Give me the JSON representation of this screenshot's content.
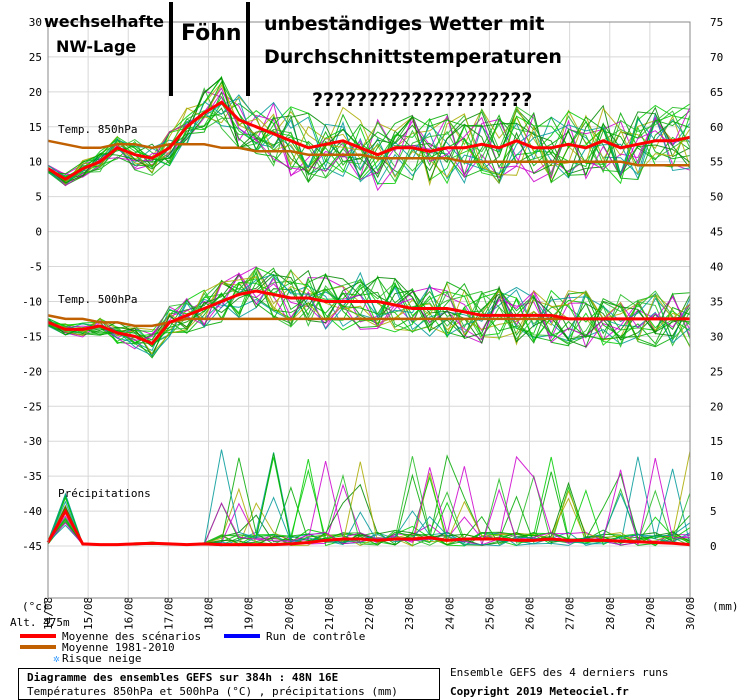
{
  "annotations": {
    "a1_line1": "wechselhafte",
    "a1_line2": "NW-Lage",
    "a2": "Föhn",
    "a3_line1": "unbeständiges Wetter mit",
    "a3_line2": "Durchschnittstemperaturen",
    "a4": "????????????????????"
  },
  "labels": {
    "temp850": "Temp. 850hPa",
    "temp500": "Temp. 500hPa",
    "precip": "Précipitations",
    "unit_left": "(°c)",
    "unit_right": "(mm)",
    "alt": "Alt. 475m"
  },
  "legend": {
    "mean": "Moyenne des scénarios",
    "clim": "Moyenne 1981-2010",
    "snow": "Risque neige",
    "control": "Run de contrôle"
  },
  "footer": {
    "title": "Diagramme des ensembles GEFS sur 384h : 48N 16E",
    "subtitle": "Températures 850hPa et 500hPa (°C) , précipitations (mm)",
    "runs": "Ensemble GEFS des 4 derniers runs",
    "copyright": "Copyright 2019 Meteociel.fr"
  },
  "colors": {
    "mean": "#ff0000",
    "clim": "#c06000",
    "control": "#0000ff",
    "snow": "#3399ff",
    "member_colors": [
      "#00aa00",
      "#00cc00",
      "#cc00cc",
      "#009999",
      "#aaaa00",
      "#22bb22",
      "#008800"
    ]
  },
  "chart_data": {
    "type": "line",
    "x_ticks": [
      "14/08",
      "15/08",
      "16/08",
      "17/08",
      "18/08",
      "19/08",
      "20/08",
      "21/08",
      "22/08",
      "23/08",
      "24/08",
      "25/08",
      "26/08",
      "27/08",
      "28/08",
      "29/08",
      "30/08"
    ],
    "left_axis_ticks": [
      30,
      25,
      20,
      15,
      10,
      5,
      0,
      -5,
      -10,
      -15,
      -20,
      -25,
      -30,
      -35,
      -40,
      -45
    ],
    "right_axis_ticks": [
      75,
      70,
      65,
      60,
      55,
      50,
      45,
      40,
      35,
      30,
      25,
      20,
      15,
      10,
      5,
      0
    ],
    "series": [
      {
        "name": "Moyenne des scénarios",
        "panel": "850hPa",
        "values": [
          9,
          7.5,
          9,
          10,
          12,
          11,
          10.5,
          12,
          15,
          17,
          18.5,
          16,
          15,
          14,
          13,
          12,
          12.5,
          13,
          12,
          11,
          12,
          12,
          11.5,
          12,
          12,
          12.5,
          12,
          13,
          12,
          12,
          12.5,
          12,
          13,
          12,
          12.5,
          13,
          13,
          13.5
        ]
      },
      {
        "name": "Moyenne 1981-2010",
        "panel": "850hPa",
        "values": [
          13,
          12.5,
          12,
          12,
          12.5,
          12.5,
          12,
          12.5,
          12.5,
          12.5,
          12,
          12,
          11.5,
          11.5,
          11.5,
          11,
          11,
          11,
          11,
          10.5,
          10.5,
          10.5,
          10.5,
          10.5,
          10,
          10,
          10,
          10,
          10,
          10,
          10,
          10,
          10,
          10,
          9.5,
          9.5,
          9.5,
          9.5
        ]
      },
      {
        "name": "Moyenne des scénarios",
        "panel": "500hPa",
        "values": [
          -13,
          -14,
          -14,
          -13.5,
          -14.5,
          -15,
          -16,
          -13,
          -12,
          -11,
          -10,
          -9,
          -8.5,
          -9,
          -9.5,
          -9.5,
          -10,
          -10,
          -10,
          -10,
          -10.5,
          -11,
          -11,
          -11,
          -11.5,
          -12,
          -12,
          -12,
          -12,
          -12,
          -12.5,
          -12.5,
          -12.5,
          -12.5,
          -12.5,
          -12.5,
          -12.5,
          -12.5
        ]
      },
      {
        "name": "Moyenne 1981-2010",
        "panel": "500hPa",
        "values": [
          -12,
          -12.5,
          -12.5,
          -13,
          -13,
          -13.5,
          -13.5,
          -13,
          -12.5,
          -12.5,
          -12.5,
          -12.5,
          -12.5,
          -12.5,
          -12.5,
          -12.5,
          -12.5,
          -12.5,
          -12.5,
          -12.5,
          -12.5,
          -12.5,
          -12.5,
          -12.5,
          -12.5,
          -12.5,
          -12.5,
          -12.5,
          -12.5,
          -12.5,
          -12.5,
          -12.5,
          -12.5,
          -12.5,
          -12.5,
          -12.5,
          -12.5,
          -12.5
        ]
      },
      {
        "name": "Moyenne des scénarios",
        "panel": "precip",
        "values": [
          0.5,
          5,
          0.3,
          0.2,
          0.2,
          0.3,
          0.4,
          0.3,
          0.2,
          0.3,
          0.2,
          0.2,
          0.2,
          0.2,
          0.3,
          0.5,
          0.8,
          1,
          1,
          0.8,
          1,
          1,
          1.2,
          0.8,
          1,
          1,
          1,
          0.8,
          0.8,
          1,
          0.8,
          0.8,
          0.8,
          0.7,
          0.6,
          0.5,
          0.4,
          0.2
        ]
      }
    ]
  }
}
